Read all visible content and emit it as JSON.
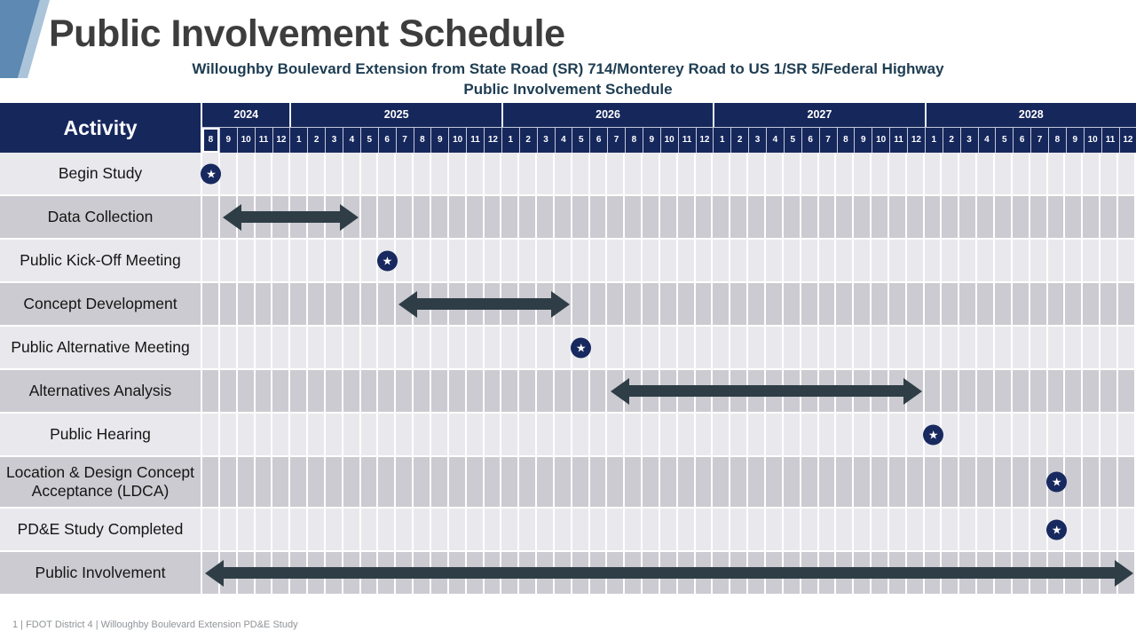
{
  "slide": {
    "title": "Public Involvement Schedule",
    "subtitle_line1": "Willoughby Boulevard Extension from State Road (SR) 714/Monterey Road to US 1/SR 5/Federal Highway",
    "subtitle_line2": "Public Involvement Schedule",
    "footer": "1 | FDOT District 4 | Willoughby Boulevard Extension PD&E Study"
  },
  "table": {
    "activity_header": "Activity",
    "years": [
      {
        "label": "2024",
        "months": [
          8,
          9,
          10,
          11,
          12
        ]
      },
      {
        "label": "2025",
        "months": [
          1,
          2,
          3,
          4,
          5,
          6,
          7,
          8,
          9,
          10,
          11,
          12
        ]
      },
      {
        "label": "2026",
        "months": [
          1,
          2,
          3,
          4,
          5,
          6,
          7,
          8,
          9,
          10,
          11,
          12
        ]
      },
      {
        "label": "2027",
        "months": [
          1,
          2,
          3,
          4,
          5,
          6,
          7,
          8,
          9,
          10,
          11,
          12
        ]
      },
      {
        "label": "2028",
        "months": [
          1,
          2,
          3,
          4,
          5,
          6,
          7,
          8,
          9,
          10,
          11,
          12
        ]
      }
    ],
    "highlighted_month": "2024-08"
  },
  "chart_data": {
    "type": "gantt",
    "title": "Public Involvement Schedule",
    "timeline_start": "2024-08",
    "timeline_end": "2028-12",
    "legend": {
      "milestone": "navy circle with white star",
      "bar": "dark double-headed arrow"
    },
    "tasks": [
      {
        "activity": "Begin Study",
        "marker": "milestone",
        "date": "2024-08"
      },
      {
        "activity": "Data Collection",
        "marker": "bar",
        "start": "2024-09",
        "end": "2025-04"
      },
      {
        "activity": "Public Kick-Off Meeting",
        "marker": "milestone",
        "date": "2025-06"
      },
      {
        "activity": "Concept Development",
        "marker": "bar",
        "start": "2025-07",
        "end": "2026-04"
      },
      {
        "activity": "Public Alternative Meeting",
        "marker": "milestone",
        "date": "2026-05"
      },
      {
        "activity": "Alternatives Analysis",
        "marker": "bar",
        "start": "2026-07",
        "end": "2027-12"
      },
      {
        "activity": "Public Hearing",
        "marker": "milestone",
        "date": "2028-01"
      },
      {
        "activity": "Location & Design Concept Acceptance (LDCA)",
        "marker": "milestone",
        "date": "2028-08"
      },
      {
        "activity": "PD&E Study Completed",
        "marker": "milestone",
        "date": "2028-08"
      },
      {
        "activity": "Public Involvement",
        "marker": "bar",
        "start": "2024-08",
        "end": "2028-12"
      }
    ]
  },
  "colors": {
    "header_navy": "#16275c",
    "star_navy": "#17295f",
    "arrow_slate": "#2f3e46",
    "row_light": "#e9e9ed",
    "row_dark": "#cbcbd1",
    "corner_blue": "#5d89b2",
    "corner_light_blue": "#abc4da",
    "title_gray": "#3d3d3d",
    "subtitle_slate": "#1e3d52",
    "footer_gray": "#8f9397"
  }
}
